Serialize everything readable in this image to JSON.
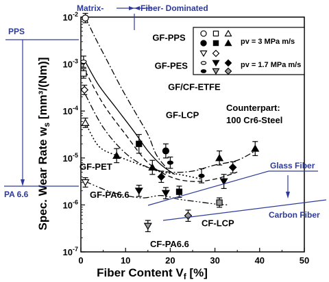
{
  "chart_data": {
    "type": "scatter",
    "title": "",
    "xlabel": "Fiber Content V",
    "xlabel_sub": "f",
    "xlabel_unit": " [%]",
    "ylabel_main": "Spec. Wear Rate w",
    "ylabel_sub": "s",
    "ylabel_unit": " [mm³/(Nm)]",
    "xlim": [
      0,
      50
    ],
    "ylim": [
      1e-07,
      0.01
    ],
    "y_scale": "log",
    "x_ticks": [
      0,
      10,
      20,
      30,
      40,
      50
    ],
    "x_tick_labels": [
      "0",
      "10",
      "20",
      "30",
      "40",
      "50"
    ],
    "y_ticks": [
      -7,
      -6,
      -5,
      -4,
      -3,
      -2
    ],
    "y_tick_labels": [
      {
        "base": "10",
        "exp": "-7"
      },
      {
        "base": "10",
        "exp": "-6"
      },
      {
        "base": "10",
        "exp": "-5"
      },
      {
        "base": "10",
        "exp": "-4"
      },
      {
        "base": "10",
        "exp": "-3"
      },
      {
        "base": "10",
        "exp": "-2"
      }
    ],
    "legend": {
      "position": "top-right",
      "rows": [
        {
          "symbols": [
            "open-circle",
            "open-square",
            "open-triangle"
          ],
          "label": ""
        },
        {
          "symbols": [
            "filled-circle",
            "filled-square",
            "filled-triangle"
          ],
          "label": "pv = 3 MPa m/s"
        },
        {
          "symbols": [
            "open-triangle-down",
            "open-diamond"
          ],
          "label": ""
        },
        {
          "symbols": [
            "open-ellipse",
            "filled-triangle-down",
            "filled-diamond"
          ],
          "label": "pv = 1.7 MPa m/s"
        },
        {
          "symbols": [
            "filled-ellipse",
            "grey-triangle-down",
            "grey-diamond"
          ],
          "label": ""
        }
      ]
    },
    "series": [
      {
        "name": "GF-PPS",
        "style": "dash-dot",
        "x": [
          1,
          3,
          6,
          9,
          12,
          15,
          17,
          20
        ],
        "log_y": [
          -2.0,
          -2.4,
          -2.95,
          -3.5,
          -4.0,
          -4.5,
          -4.95,
          -5.3
        ]
      },
      {
        "name": "GF-PES",
        "style": "solid",
        "x": [
          1,
          4,
          8,
          12,
          15,
          18,
          21
        ],
        "log_y": [
          -2.95,
          -3.45,
          -3.95,
          -4.45,
          -4.85,
          -5.15,
          -5.35
        ]
      },
      {
        "name": "GF/CF-ETFE",
        "style": "dashed",
        "x": [
          1,
          5,
          10,
          15,
          20,
          25,
          30,
          35
        ],
        "log_y": [
          -3.15,
          -3.85,
          -4.5,
          -5.1,
          -5.4,
          -5.5,
          -5.45,
          -5.3
        ]
      },
      {
        "name": "GF-LCP",
        "style": "dash-dot",
        "x": [
          1,
          5,
          10,
          15,
          20,
          25,
          30,
          35,
          39
        ],
        "log_y": [
          -3.65,
          -4.35,
          -4.9,
          -5.2,
          -5.3,
          -5.28,
          -5.15,
          -5.05,
          -4.85
        ]
      },
      {
        "name": "GF-PET",
        "style": "dotted",
        "x": [
          1,
          4,
          8,
          12,
          15,
          18,
          22,
          27
        ],
        "log_y": [
          -4.25,
          -4.75,
          -4.95,
          -5.1,
          -5.2,
          -5.3,
          -5.35,
          -5.45
        ]
      },
      {
        "name": "GF-PA6.6",
        "style": "dash-dot-dot",
        "x": [
          1,
          6,
          10,
          14,
          18,
          22,
          26,
          30,
          33
        ],
        "log_y": [
          -5.5,
          -5.7,
          -5.8,
          -5.85,
          -5.8,
          -5.88,
          -5.93,
          -5.98,
          -6.0
        ]
      }
    ],
    "points": [
      {
        "x": 1,
        "log_y": -2.02,
        "err": 0.1,
        "marker": "open-circle"
      },
      {
        "x": 0.6,
        "log_y": -2.95,
        "err": 0.12,
        "marker": "open-ellipse"
      },
      {
        "x": 0.6,
        "log_y": -3.2,
        "err": 0.1,
        "marker": "open-square"
      },
      {
        "x": 0.8,
        "log_y": -3.55,
        "err": 0.1,
        "marker": "open-diamond"
      },
      {
        "x": 1,
        "log_y": -4.25,
        "err": 0.1,
        "marker": "open-triangle"
      },
      {
        "x": 1,
        "log_y": -5.52,
        "err": 0.1,
        "marker": "open-triangle-down"
      },
      {
        "x": 8,
        "log_y": -4.95,
        "err": 0.15,
        "marker": "filled-triangle"
      },
      {
        "x": 13,
        "log_y": -5.7,
        "err": 0.12,
        "marker": "filled-triangle-down"
      },
      {
        "x": 13,
        "log_y": -4.7,
        "err": 0.2,
        "marker": "filled-square"
      },
      {
        "x": 16,
        "log_y": -5.2,
        "err": 0.15,
        "marker": "filled-triangle"
      },
      {
        "x": 18,
        "log_y": -5.4,
        "err": 0.12,
        "marker": "filled-diamond"
      },
      {
        "x": 19,
        "log_y": -4.85,
        "err": 0.15,
        "marker": "filled-circle"
      },
      {
        "x": 19,
        "log_y": -5.75,
        "err": 0.12,
        "marker": "filled-triangle-down"
      },
      {
        "x": 20,
        "log_y": -5.1,
        "err": 0.12,
        "marker": "filled-ellipse"
      },
      {
        "x": 22,
        "log_y": -5.72,
        "err": 0.12,
        "marker": "filled-square"
      },
      {
        "x": 24,
        "log_y": -6.23,
        "err": 0.12,
        "marker": "grey-diamond"
      },
      {
        "x": 27,
        "log_y": -5.38,
        "err": 0.15,
        "marker": "filled-ellipse"
      },
      {
        "x": 31,
        "log_y": -5.0,
        "err": 0.15,
        "marker": "filled-triangle"
      },
      {
        "x": 31,
        "log_y": -5.95,
        "err": 0.1,
        "marker": "grey-square"
      },
      {
        "x": 32,
        "log_y": -5.5,
        "err": 0.15,
        "marker": "filled-triangle-down"
      },
      {
        "x": 34,
        "log_y": -5.2,
        "err": 0.12,
        "marker": "filled-diamond"
      },
      {
        "x": 39,
        "log_y": -4.8,
        "err": 0.15,
        "marker": "filled-triangle"
      },
      {
        "x": 15,
        "log_y": -6.45,
        "err": 0.12,
        "marker": "grey-triangle-down"
      }
    ],
    "curve_labels": [
      {
        "text": "GF-PPS",
        "x": 16,
        "log_y": -2.5
      },
      {
        "text": "GF-PES",
        "x": 16.5,
        "log_y": -3.1
      },
      {
        "text": "GF/CF-ETFE",
        "x": 19.5,
        "log_y": -3.55
      },
      {
        "text": "GF-LCP",
        "x": 19,
        "log_y": -4.15
      },
      {
        "text": "GF-PET",
        "x": -0.3,
        "log_y": -5.25
      },
      {
        "text": "GF-PA6.6",
        "x": 2,
        "log_y": -5.85
      },
      {
        "text": "CF-LCP",
        "x": 27,
        "log_y": -6.45
      },
      {
        "text": "CF-PA6.6",
        "x": 15.5,
        "log_y": -6.9
      }
    ],
    "counterpart": {
      "line1": "Counterpart:",
      "line2": "100 Cr6-Steel"
    },
    "annotations": {
      "matrix": "Matrix-",
      "fiber_dominated": "Fiber- Dominated",
      "pps": "PPS",
      "pa66": "PA 6.6",
      "glass_fiber": "Glass Fiber",
      "carbon_fiber": "Carbon Fiber"
    },
    "colors": {
      "annotation": "#2e3a9a",
      "grey_marker": "#9a9a9a"
    }
  }
}
